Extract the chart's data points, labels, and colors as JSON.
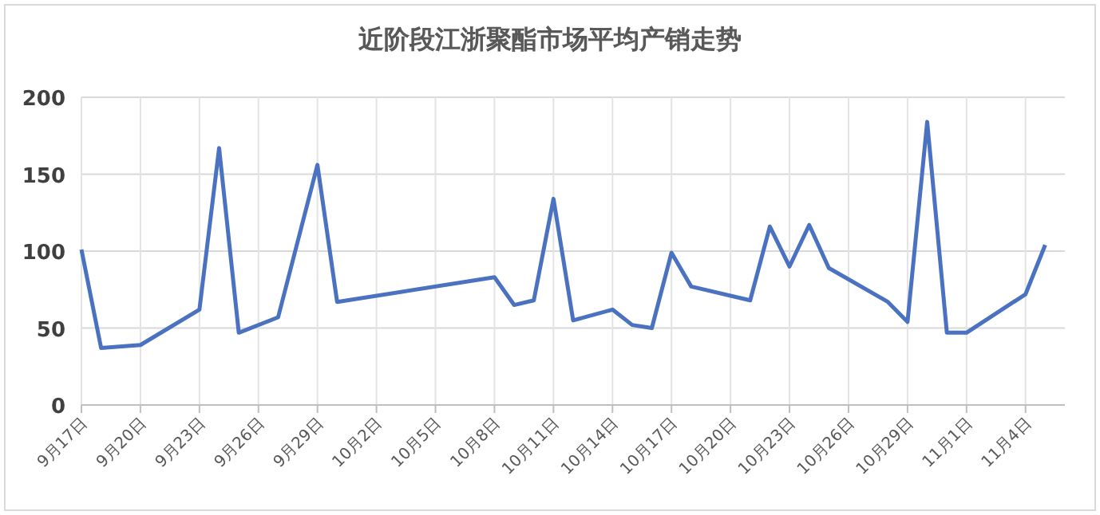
{
  "chart_data": {
    "type": "line",
    "title": "近阶段江浙聚酯市场平均产销走势",
    "x": [
      "--09-17",
      "--09-18",
      "--09-20",
      "--09-23",
      "--09-24",
      "--09-25",
      "--09-27",
      "--09-29",
      "--09-30",
      "--10-08",
      "--10-09",
      "--10-10",
      "--10-11",
      "--10-12",
      "--10-14",
      "--10-15",
      "--10-16",
      "--10-17",
      "--10-18",
      "--10-21",
      "--10-22",
      "--10-23",
      "--10-24",
      "--10-25",
      "--10-28",
      "--10-29",
      "--10-30",
      "--10-31",
      "--11-01",
      "--11-04",
      "--11-05"
    ],
    "series": [
      {
        "color": "#4a72c0",
        "values": [
          101,
          37,
          39,
          62,
          167,
          47,
          57,
          156,
          67,
          83,
          65,
          68,
          134,
          55,
          62,
          52,
          50,
          99,
          77,
          68,
          116,
          90,
          117,
          89,
          67,
          54,
          184,
          47,
          47,
          72,
          104
        ]
      }
    ],
    "xlim": [
      "--09-17",
      "--11-06"
    ],
    "ylim": [
      0,
      200
    ],
    "yticks": [
      0,
      50,
      100,
      150,
      200
    ],
    "xticks": [
      {
        "value": "--09-17",
        "label": "9月17日"
      },
      {
        "value": "--09-20",
        "label": "9月20日"
      },
      {
        "value": "--09-23",
        "label": "9月23日"
      },
      {
        "value": "--09-26",
        "label": "9月26日"
      },
      {
        "value": "--09-29",
        "label": "9月29日"
      },
      {
        "value": "--10-02",
        "label": "10月2日"
      },
      {
        "value": "--10-05",
        "label": "10月5日"
      },
      {
        "value": "--10-08",
        "label": "10月8日"
      },
      {
        "value": "--10-11",
        "label": "10月11日"
      },
      {
        "value": "--10-14",
        "label": "10月14日"
      },
      {
        "value": "--10-17",
        "label": "10月17日"
      },
      {
        "value": "--10-20",
        "label": "10月20日"
      },
      {
        "value": "--10-23",
        "label": "10月23日"
      },
      {
        "value": "--10-26",
        "label": "10月26日"
      },
      {
        "value": "--10-29",
        "label": "10月29日"
      },
      {
        "value": "--11-01",
        "label": "11月1日"
      },
      {
        "value": "--11-04",
        "label": "11月4日"
      }
    ],
    "grid": true
  }
}
